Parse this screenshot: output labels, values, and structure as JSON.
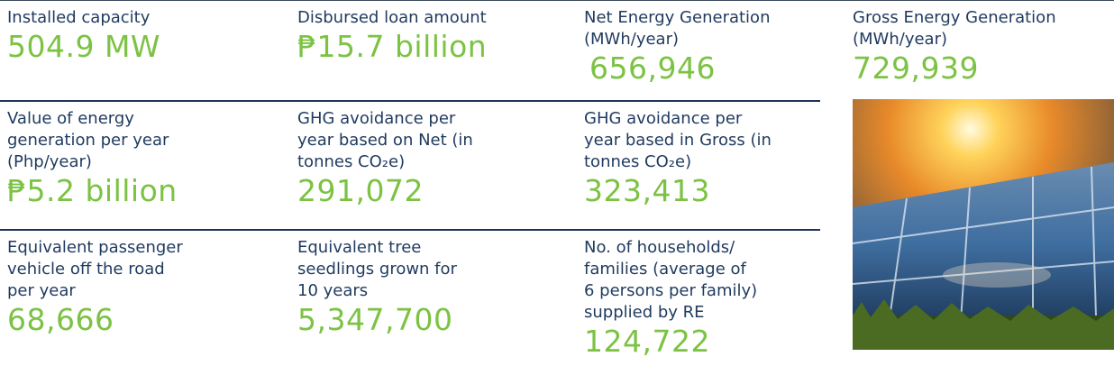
{
  "rows": [
    [
      {
        "label": [
          "Installed capacity"
        ],
        "value": "504.9 MW"
      },
      {
        "label": [
          "Disbursed loan amount"
        ],
        "value": "₱15.7 billion"
      },
      {
        "label": [
          "Net Energy Generation",
          "(MWh/year)"
        ],
        "value": "656,946"
      },
      {
        "label": [
          "Gross Energy Generation",
          "(MWh/year)"
        ],
        "value": "729,939"
      }
    ],
    [
      {
        "label": [
          "Value of energy",
          "generation per year",
          "(Php/year)"
        ],
        "value": "₱5.2 billion"
      },
      {
        "label": [
          "GHG avoidance per",
          "year based on Net (in",
          "tonnes CO₂e)"
        ],
        "value": "291,072"
      },
      {
        "label": [
          "GHG avoidance per",
          "year based in Gross (in",
          "tonnes CO₂e)"
        ],
        "value": "323,413"
      }
    ],
    [
      {
        "label": [
          "Equivalent passenger",
          "vehicle off the road",
          "per year"
        ],
        "value": "68,666"
      },
      {
        "label": [
          "Equivalent tree",
          "seedlings grown for",
          "10 years"
        ],
        "value": "5,347,700"
      },
      {
        "label": [
          "No. of households/",
          "families (average of",
          "6 persons per family)",
          "supplied by RE"
        ],
        "value": "124,722"
      }
    ]
  ]
}
